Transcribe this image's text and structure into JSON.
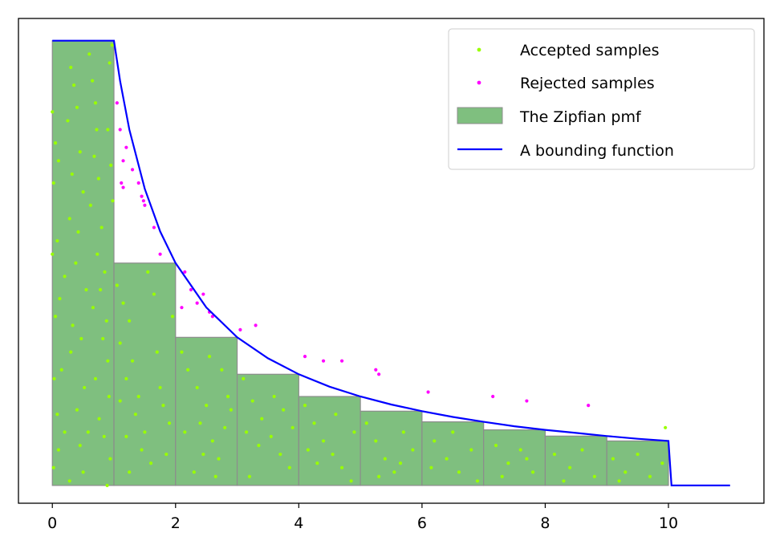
{
  "chart_data": {
    "type": "bar",
    "title": "",
    "xlabel": "",
    "ylabel": "",
    "xlim": [
      -0.55,
      11.55
    ],
    "ylim": [
      -0.04,
      1.05
    ],
    "xticks": [
      0,
      2,
      4,
      6,
      8,
      10
    ],
    "xtick_labels": [
      "0",
      "2",
      "4",
      "6",
      "8",
      "10"
    ],
    "yticks_visible": false,
    "grid": false,
    "legend_position": "top-right",
    "colors": {
      "pmf_fill": "#7fbf7f",
      "pmf_edge": "#8c8c8c",
      "bound": "#0000ff",
      "accepted": "#99ff00",
      "rejected": "#ff00ff"
    },
    "legend": [
      {
        "label": "Accepted samples",
        "marker": "dot",
        "color": "#99ff00"
      },
      {
        "label": "Rejected samples",
        "marker": "dot",
        "color": "#ff00ff"
      },
      {
        "label": "The Zipfian pmf",
        "marker": "patch",
        "color": "#7fbf7f"
      },
      {
        "label": "A bounding function",
        "marker": "line",
        "color": "#0000ff"
      }
    ],
    "series": [
      {
        "name": "The Zipfian pmf",
        "kind": "bar",
        "x_left": [
          0,
          1,
          2,
          3,
          4,
          5,
          6,
          7,
          8,
          9
        ],
        "width": 1,
        "values": [
          1.0,
          0.5,
          0.333,
          0.25,
          0.2,
          0.167,
          0.143,
          0.125,
          0.111,
          0.1
        ]
      },
      {
        "name": "A bounding function",
        "kind": "line",
        "x": [
          0,
          1,
          1.1,
          1.25,
          1.5,
          1.75,
          2,
          2.5,
          3,
          3.5,
          4,
          4.5,
          5,
          5.5,
          6,
          6.5,
          7,
          7.5,
          8,
          8.5,
          9,
          9.5,
          10,
          10.05,
          11
        ],
        "values": [
          1.0,
          1.0,
          0.909,
          0.8,
          0.667,
          0.571,
          0.5,
          0.4,
          0.333,
          0.286,
          0.25,
          0.222,
          0.2,
          0.182,
          0.167,
          0.154,
          0.143,
          0.133,
          0.125,
          0.118,
          0.111,
          0.105,
          0.1,
          0.0,
          0.0
        ]
      },
      {
        "name": "Accepted samples",
        "kind": "scatter",
        "points": [
          [
            0.0,
            0.84
          ],
          [
            0.05,
            0.77
          ],
          [
            0.1,
            0.73
          ],
          [
            0.02,
            0.68
          ],
          [
            0.08,
            0.55
          ],
          [
            0.0,
            0.52
          ],
          [
            0.12,
            0.42
          ],
          [
            0.05,
            0.38
          ],
          [
            0.15,
            0.26
          ],
          [
            0.03,
            0.24
          ],
          [
            0.08,
            0.16
          ],
          [
            0.2,
            0.12
          ],
          [
            0.1,
            0.08
          ],
          [
            0.02,
            0.04
          ],
          [
            0.28,
            0.01
          ],
          [
            0.3,
            0.94
          ],
          [
            0.35,
            0.9
          ],
          [
            0.4,
            0.85
          ],
          [
            0.25,
            0.82
          ],
          [
            0.45,
            0.75
          ],
          [
            0.32,
            0.7
          ],
          [
            0.5,
            0.66
          ],
          [
            0.28,
            0.6
          ],
          [
            0.42,
            0.57
          ],
          [
            0.38,
            0.5
          ],
          [
            0.2,
            0.47
          ],
          [
            0.55,
            0.44
          ],
          [
            0.33,
            0.36
          ],
          [
            0.47,
            0.33
          ],
          [
            0.3,
            0.3
          ],
          [
            0.52,
            0.22
          ],
          [
            0.4,
            0.17
          ],
          [
            0.58,
            0.12
          ],
          [
            0.45,
            0.09
          ],
          [
            0.5,
            0.03
          ],
          [
            0.6,
            0.97
          ],
          [
            0.65,
            0.91
          ],
          [
            0.7,
            0.86
          ],
          [
            0.72,
            0.8
          ],
          [
            0.68,
            0.74
          ],
          [
            0.75,
            0.69
          ],
          [
            0.62,
            0.63
          ],
          [
            0.8,
            0.58
          ],
          [
            0.73,
            0.52
          ],
          [
            0.85,
            0.48
          ],
          [
            0.78,
            0.44
          ],
          [
            0.66,
            0.4
          ],
          [
            0.88,
            0.37
          ],
          [
            0.82,
            0.33
          ],
          [
            0.9,
            0.28
          ],
          [
            0.7,
            0.24
          ],
          [
            0.92,
            0.2
          ],
          [
            0.76,
            0.15
          ],
          [
            0.84,
            0.11
          ],
          [
            0.94,
            0.06
          ],
          [
            0.89,
            0.0
          ],
          [
            0.97,
            0.99
          ],
          [
            0.93,
            0.95
          ],
          [
            0.95,
            0.72
          ],
          [
            0.98,
            0.64
          ],
          [
            0.9,
            0.8
          ],
          [
            1.05,
            0.45
          ],
          [
            1.15,
            0.41
          ],
          [
            1.25,
            0.37
          ],
          [
            1.1,
            0.32
          ],
          [
            1.3,
            0.28
          ],
          [
            1.2,
            0.24
          ],
          [
            1.4,
            0.2
          ],
          [
            1.35,
            0.16
          ],
          [
            1.5,
            0.12
          ],
          [
            1.45,
            0.08
          ],
          [
            1.6,
            0.05
          ],
          [
            1.1,
            0.19
          ],
          [
            1.2,
            0.11
          ],
          [
            1.7,
            0.3
          ],
          [
            1.75,
            0.22
          ],
          [
            1.8,
            0.18
          ],
          [
            1.65,
            0.43
          ],
          [
            1.55,
            0.48
          ],
          [
            1.9,
            0.14
          ],
          [
            1.85,
            0.07
          ],
          [
            1.95,
            0.38
          ],
          [
            1.25,
            0.03
          ],
          [
            2.1,
            0.3
          ],
          [
            2.2,
            0.26
          ],
          [
            2.35,
            0.22
          ],
          [
            2.5,
            0.18
          ],
          [
            2.4,
            0.14
          ],
          [
            2.6,
            0.1
          ],
          [
            2.7,
            0.06
          ],
          [
            2.3,
            0.03
          ],
          [
            2.85,
            0.2
          ],
          [
            2.75,
            0.26
          ],
          [
            2.9,
            0.17
          ],
          [
            2.55,
            0.29
          ],
          [
            2.15,
            0.12
          ],
          [
            2.45,
            0.07
          ],
          [
            2.65,
            0.02
          ],
          [
            2.8,
            0.13
          ],
          [
            3.1,
            0.24
          ],
          [
            3.25,
            0.19
          ],
          [
            3.4,
            0.15
          ],
          [
            3.55,
            0.11
          ],
          [
            3.7,
            0.07
          ],
          [
            3.85,
            0.04
          ],
          [
            3.2,
            0.02
          ],
          [
            3.6,
            0.2
          ],
          [
            3.9,
            0.13
          ],
          [
            3.35,
            0.09
          ],
          [
            3.75,
            0.17
          ],
          [
            3.15,
            0.12
          ],
          [
            4.1,
            0.18
          ],
          [
            4.25,
            0.14
          ],
          [
            4.4,
            0.1
          ],
          [
            4.55,
            0.07
          ],
          [
            4.7,
            0.04
          ],
          [
            4.85,
            0.01
          ],
          [
            4.3,
            0.05
          ],
          [
            4.6,
            0.16
          ],
          [
            4.9,
            0.12
          ],
          [
            4.15,
            0.08
          ],
          [
            5.1,
            0.14
          ],
          [
            5.25,
            0.1
          ],
          [
            5.4,
            0.06
          ],
          [
            5.55,
            0.03
          ],
          [
            5.7,
            0.12
          ],
          [
            5.85,
            0.08
          ],
          [
            5.3,
            0.02
          ],
          [
            5.65,
            0.05
          ],
          [
            6.2,
            0.1
          ],
          [
            6.4,
            0.06
          ],
          [
            6.6,
            0.03
          ],
          [
            6.8,
            0.08
          ],
          [
            6.5,
            0.12
          ],
          [
            6.15,
            0.04
          ],
          [
            6.9,
            0.01
          ],
          [
            7.2,
            0.09
          ],
          [
            7.4,
            0.05
          ],
          [
            7.6,
            0.08
          ],
          [
            7.8,
            0.03
          ],
          [
            7.3,
            0.02
          ],
          [
            7.7,
            0.06
          ],
          [
            8.15,
            0.07
          ],
          [
            8.4,
            0.04
          ],
          [
            8.6,
            0.08
          ],
          [
            8.8,
            0.02
          ],
          [
            8.3,
            0.01
          ],
          [
            9.1,
            0.06
          ],
          [
            9.3,
            0.03
          ],
          [
            9.5,
            0.07
          ],
          [
            9.7,
            0.02
          ],
          [
            9.9,
            0.05
          ],
          [
            9.2,
            0.01
          ],
          [
            9.95,
            0.13
          ]
        ]
      },
      {
        "name": "Rejected samples",
        "kind": "scatter",
        "points": [
          [
            1.05,
            0.86
          ],
          [
            1.1,
            0.8
          ],
          [
            1.2,
            0.76
          ],
          [
            1.15,
            0.73
          ],
          [
            1.3,
            0.71
          ],
          [
            1.4,
            0.68
          ],
          [
            1.12,
            0.68
          ],
          [
            1.48,
            0.64
          ],
          [
            1.5,
            0.63
          ],
          [
            1.45,
            0.65
          ],
          [
            1.15,
            0.67
          ],
          [
            1.65,
            0.58
          ],
          [
            1.75,
            0.52
          ],
          [
            2.15,
            0.48
          ],
          [
            2.25,
            0.44
          ],
          [
            2.35,
            0.41
          ],
          [
            2.45,
            0.43
          ],
          [
            2.1,
            0.4
          ],
          [
            2.55,
            0.39
          ],
          [
            2.6,
            0.38
          ],
          [
            3.05,
            0.35
          ],
          [
            3.3,
            0.36
          ],
          [
            4.1,
            0.29
          ],
          [
            4.4,
            0.28
          ],
          [
            4.7,
            0.28
          ],
          [
            5.25,
            0.26
          ],
          [
            5.3,
            0.25
          ],
          [
            6.1,
            0.21
          ],
          [
            7.15,
            0.2
          ],
          [
            7.7,
            0.19
          ],
          [
            8.7,
            0.18
          ]
        ]
      }
    ]
  }
}
